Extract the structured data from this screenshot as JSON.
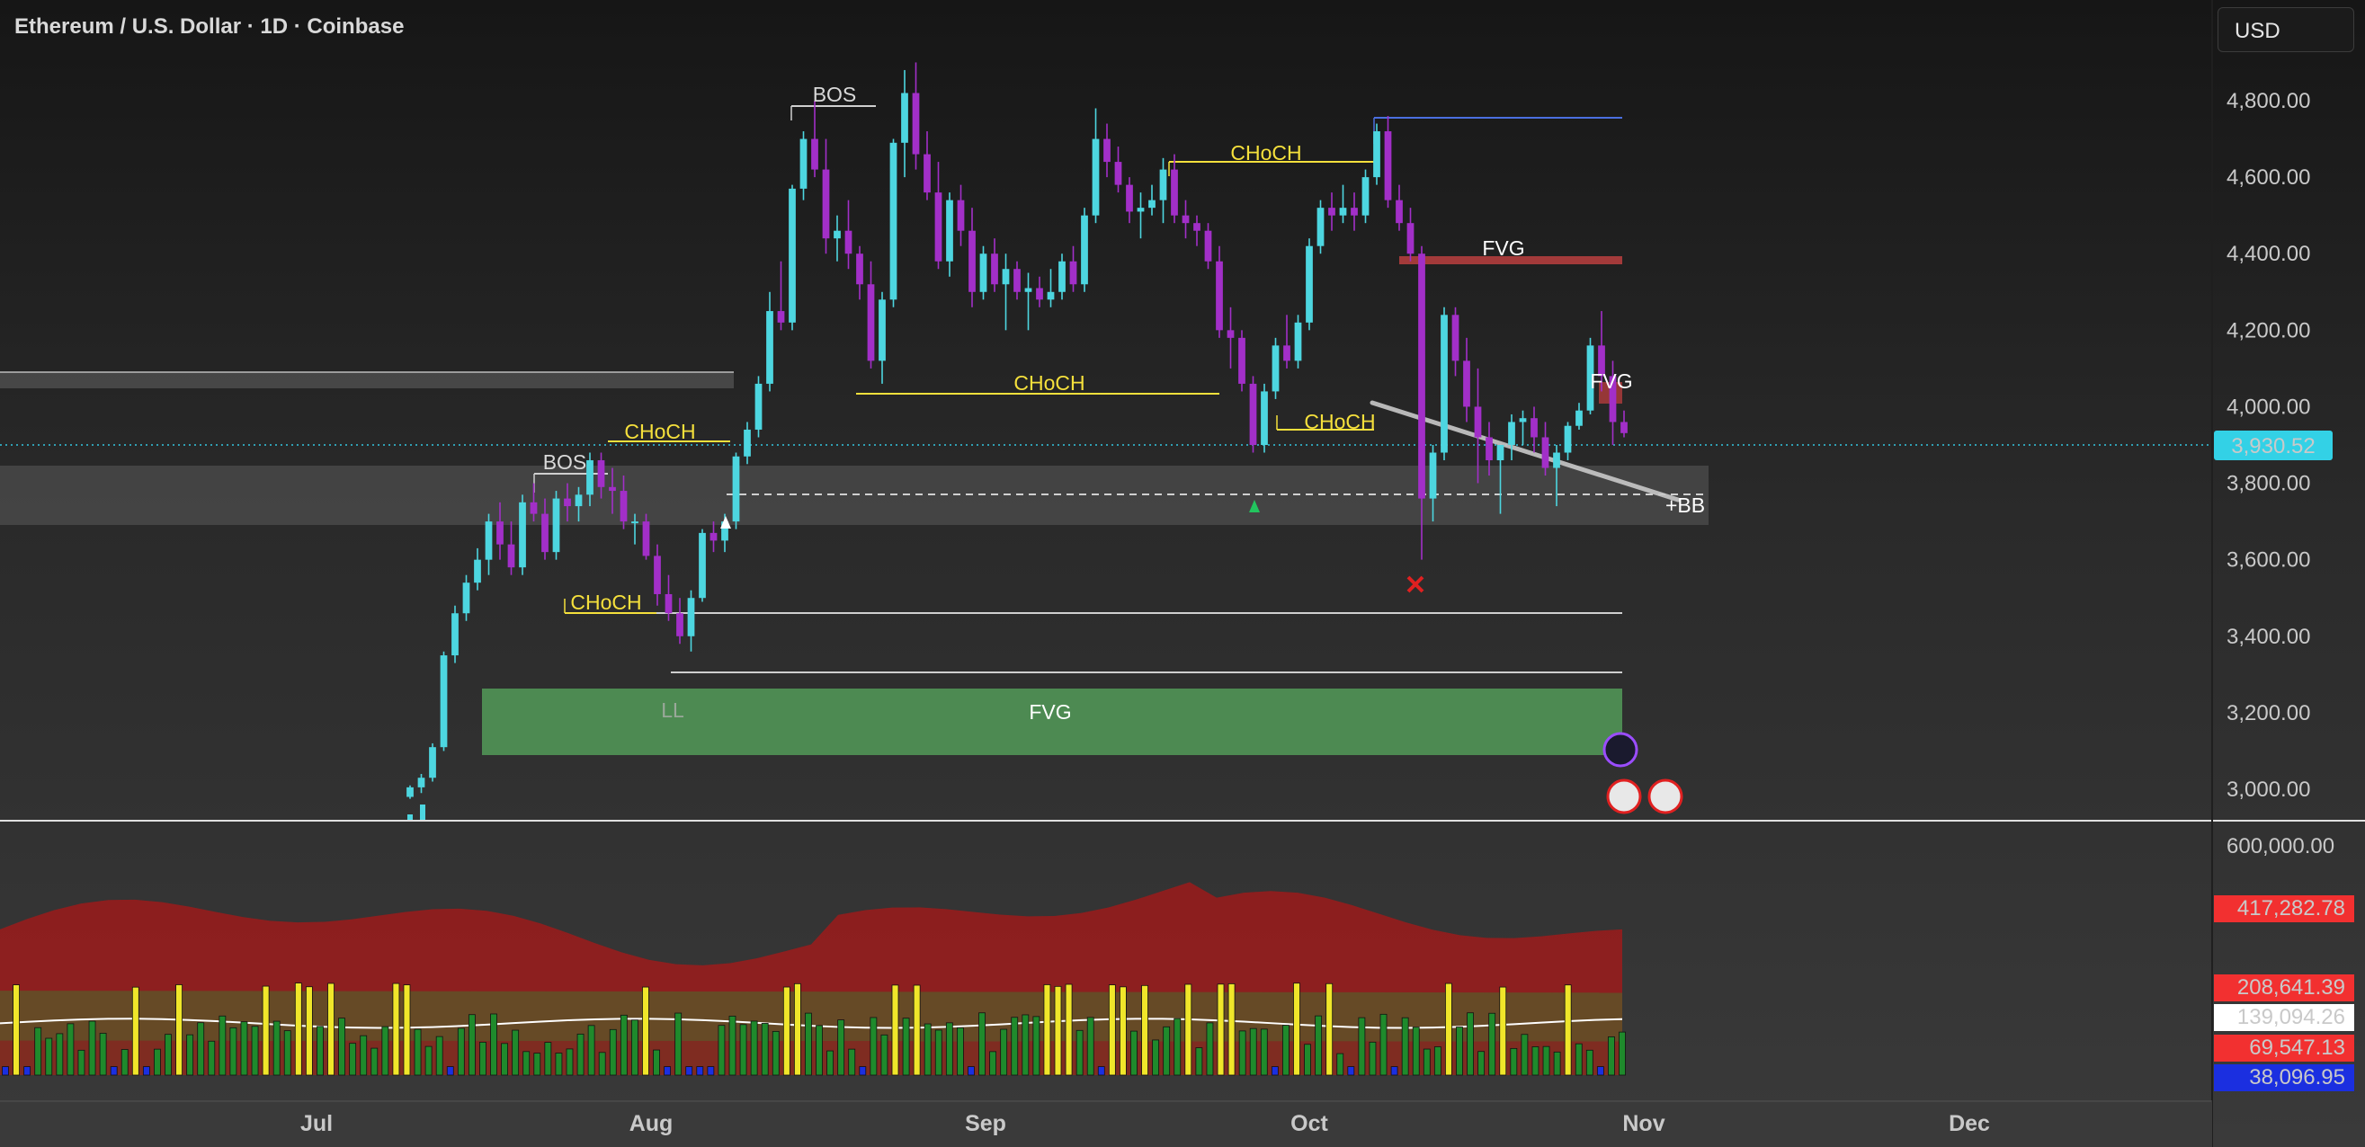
{
  "header": {
    "title": "Ethereum / U.S. Dollar · 1D · Coinbase",
    "currency_button": "USD"
  },
  "colors": {
    "up": "#4dd6e0",
    "down": "#a22fc8",
    "choch": "#f5e03c",
    "bos": "#c8c8c8",
    "fvg_bull": "#4d8a52",
    "fvg_bear": "#a33a3a",
    "range_blue": "#4a6fe0",
    "last_price_bg": "#33d1e6",
    "vol_up": "#1f8a2c",
    "vol_high": "#f0e62a",
    "vol_low": "#1b2fe0",
    "vol_band": "#9c1b1b"
  },
  "chart_data": [
    {
      "type": "candlestick",
      "title": "Ethereum / U.S. Dollar · 1D · Coinbase",
      "ylim": [
        2970,
        4950
      ],
      "y_ticks": [
        "4,800.00",
        "4,600.00",
        "4,400.00",
        "4,200.00",
        "4,000.00",
        "3,800.00",
        "3,600.00",
        "3,400.00",
        "3,200.00",
        "3,000.00"
      ],
      "x_ticks": [
        "Jul",
        "Aug",
        "Sep",
        "Oct",
        "Nov",
        "Dec"
      ],
      "last_price": "3,930.52",
      "candles_ohlc": [
        [
          2980,
          3010,
          2975,
          3005
        ],
        [
          3005,
          3040,
          2990,
          3030
        ],
        [
          3030,
          3120,
          3020,
          3110
        ],
        [
          3110,
          3360,
          3100,
          3350
        ],
        [
          3350,
          3480,
          3330,
          3460
        ],
        [
          3460,
          3560,
          3440,
          3540
        ],
        [
          3540,
          3630,
          3520,
          3600
        ],
        [
          3600,
          3720,
          3560,
          3700
        ],
        [
          3700,
          3750,
          3600,
          3640
        ],
        [
          3640,
          3700,
          3560,
          3580
        ],
        [
          3580,
          3770,
          3560,
          3750
        ],
        [
          3750,
          3800,
          3700,
          3720
        ],
        [
          3720,
          3760,
          3600,
          3620
        ],
        [
          3620,
          3780,
          3600,
          3760
        ],
        [
          3760,
          3800,
          3700,
          3740
        ],
        [
          3740,
          3790,
          3700,
          3770
        ],
        [
          3770,
          3880,
          3740,
          3860
        ],
        [
          3860,
          3880,
          3760,
          3790
        ],
        [
          3790,
          3840,
          3720,
          3780
        ],
        [
          3780,
          3820,
          3680,
          3700
        ],
        [
          3700,
          3720,
          3640,
          3700
        ],
        [
          3700,
          3720,
          3600,
          3610
        ],
        [
          3610,
          3640,
          3480,
          3510
        ],
        [
          3510,
          3560,
          3440,
          3460
        ],
        [
          3460,
          3500,
          3380,
          3400
        ],
        [
          3400,
          3520,
          3360,
          3500
        ],
        [
          3500,
          3680,
          3490,
          3670
        ],
        [
          3670,
          3700,
          3620,
          3650
        ],
        [
          3650,
          3720,
          3620,
          3700
        ],
        [
          3700,
          3880,
          3680,
          3870
        ],
        [
          3870,
          3960,
          3850,
          3940
        ],
        [
          3940,
          4080,
          3920,
          4060
        ],
        [
          4060,
          4300,
          4040,
          4250
        ],
        [
          4250,
          4380,
          4200,
          4220
        ],
        [
          4220,
          4580,
          4200,
          4570
        ],
        [
          4570,
          4720,
          4540,
          4700
        ],
        [
          4700,
          4800,
          4600,
          4620
        ],
        [
          4620,
          4700,
          4400,
          4440
        ],
        [
          4440,
          4500,
          4380,
          4460
        ],
        [
          4460,
          4540,
          4360,
          4400
        ],
        [
          4400,
          4420,
          4280,
          4320
        ],
        [
          4320,
          4380,
          4100,
          4120
        ],
        [
          4120,
          4300,
          4060,
          4280
        ],
        [
          4280,
          4700,
          4260,
          4690
        ],
        [
          4690,
          4880,
          4600,
          4820
        ],
        [
          4820,
          4900,
          4620,
          4660
        ],
        [
          4660,
          4720,
          4540,
          4560
        ],
        [
          4560,
          4640,
          4360,
          4380
        ],
        [
          4380,
          4560,
          4340,
          4540
        ],
        [
          4540,
          4580,
          4420,
          4460
        ],
        [
          4460,
          4520,
          4260,
          4300
        ],
        [
          4300,
          4420,
          4280,
          4400
        ],
        [
          4400,
          4440,
          4300,
          4320
        ],
        [
          4320,
          4400,
          4200,
          4360
        ],
        [
          4360,
          4380,
          4280,
          4300
        ],
        [
          4300,
          4350,
          4200,
          4310
        ],
        [
          4310,
          4340,
          4260,
          4280
        ],
        [
          4280,
          4360,
          4260,
          4300
        ],
        [
          4300,
          4400,
          4280,
          4380
        ],
        [
          4380,
          4420,
          4300,
          4320
        ],
        [
          4320,
          4520,
          4300,
          4500
        ],
        [
          4500,
          4780,
          4480,
          4700
        ],
        [
          4700,
          4740,
          4600,
          4640
        ],
        [
          4640,
          4680,
          4560,
          4580
        ],
        [
          4580,
          4600,
          4480,
          4510
        ],
        [
          4510,
          4560,
          4440,
          4520
        ],
        [
          4520,
          4580,
          4500,
          4540
        ],
        [
          4540,
          4650,
          4480,
          4620
        ],
        [
          4620,
          4660,
          4480,
          4500
        ],
        [
          4500,
          4540,
          4440,
          4480
        ],
        [
          4480,
          4500,
          4420,
          4460
        ],
        [
          4460,
          4480,
          4360,
          4380
        ],
        [
          4380,
          4420,
          4180,
          4200
        ],
        [
          4200,
          4260,
          4100,
          4180
        ],
        [
          4180,
          4200,
          4040,
          4060
        ],
        [
          4060,
          4080,
          3880,
          3900
        ],
        [
          3900,
          4060,
          3880,
          4040
        ],
        [
          4040,
          4180,
          4020,
          4160
        ],
        [
          4160,
          4240,
          4100,
          4120
        ],
        [
          4120,
          4240,
          4100,
          4220
        ],
        [
          4220,
          4440,
          4200,
          4420
        ],
        [
          4420,
          4540,
          4400,
          4520
        ],
        [
          4520,
          4560,
          4460,
          4500
        ],
        [
          4500,
          4580,
          4480,
          4520
        ],
        [
          4520,
          4560,
          4460,
          4500
        ],
        [
          4500,
          4620,
          4480,
          4600
        ],
        [
          4600,
          4740,
          4580,
          4720
        ],
        [
          4720,
          4760,
          4520,
          4540
        ],
        [
          4540,
          4580,
          4460,
          4480
        ],
        [
          4480,
          4520,
          4380,
          4400
        ],
        [
          4400,
          4420,
          3600,
          3760
        ],
        [
          3760,
          3900,
          3700,
          3880
        ],
        [
          3880,
          4260,
          3860,
          4240
        ],
        [
          4240,
          4260,
          4080,
          4120
        ],
        [
          4120,
          4180,
          3960,
          4000
        ],
        [
          4000,
          4100,
          3800,
          3920
        ],
        [
          3920,
          3960,
          3820,
          3860
        ],
        [
          3860,
          3880,
          3720,
          3900
        ],
        [
          3900,
          3980,
          3860,
          3960
        ],
        [
          3960,
          3990,
          3900,
          3970
        ],
        [
          3970,
          4000,
          3880,
          3920
        ],
        [
          3920,
          3960,
          3820,
          3840
        ],
        [
          3840,
          3900,
          3740,
          3880
        ],
        [
          3880,
          3960,
          3860,
          3950
        ],
        [
          3950,
          4010,
          3940,
          3990
        ],
        [
          3990,
          4180,
          3980,
          4160
        ],
        [
          4160,
          4250,
          4040,
          4080
        ],
        [
          4080,
          4120,
          3900,
          3960
        ],
        [
          3960,
          3990,
          3920,
          3931
        ]
      ],
      "annotations": [
        {
          "label": "BOS",
          "kind": "bos"
        },
        {
          "label": "BOS",
          "kind": "bos"
        },
        {
          "label": "CHoCH",
          "kind": "choch"
        },
        {
          "label": "CHoCH",
          "kind": "choch"
        },
        {
          "label": "CHoCH",
          "kind": "choch"
        },
        {
          "label": "CHoCH",
          "kind": "choch"
        },
        {
          "label": "CHoCH",
          "kind": "choch"
        },
        {
          "label": "FVG",
          "kind": "fvg-bear"
        },
        {
          "label": "FVG",
          "kind": "fvg-bear"
        },
        {
          "label": "FVG",
          "kind": "fvg-bull"
        },
        {
          "label": "LL",
          "kind": "swing"
        },
        {
          "label": "+BB",
          "kind": "breaker"
        }
      ]
    },
    {
      "type": "bar",
      "title": "Volume",
      "ylim": [
        0,
        600000
      ],
      "y_ticks": [
        "600,000.00"
      ],
      "levels": [
        {
          "value": "417,282.78",
          "color": "#f23030",
          "text_color": "#ffffff"
        },
        {
          "value": "208,641.39",
          "color": "#f23030",
          "text_color": "#ffffff"
        },
        {
          "value": "139,094.26",
          "color": "#ffffff",
          "text_color": "#111111"
        },
        {
          "value": "69,547.13",
          "color": "#f23030",
          "text_color": "#ffffff"
        },
        {
          "value": "38,096.95",
          "color": "#1b2fe0",
          "text_color": "#ffffff"
        }
      ]
    }
  ]
}
